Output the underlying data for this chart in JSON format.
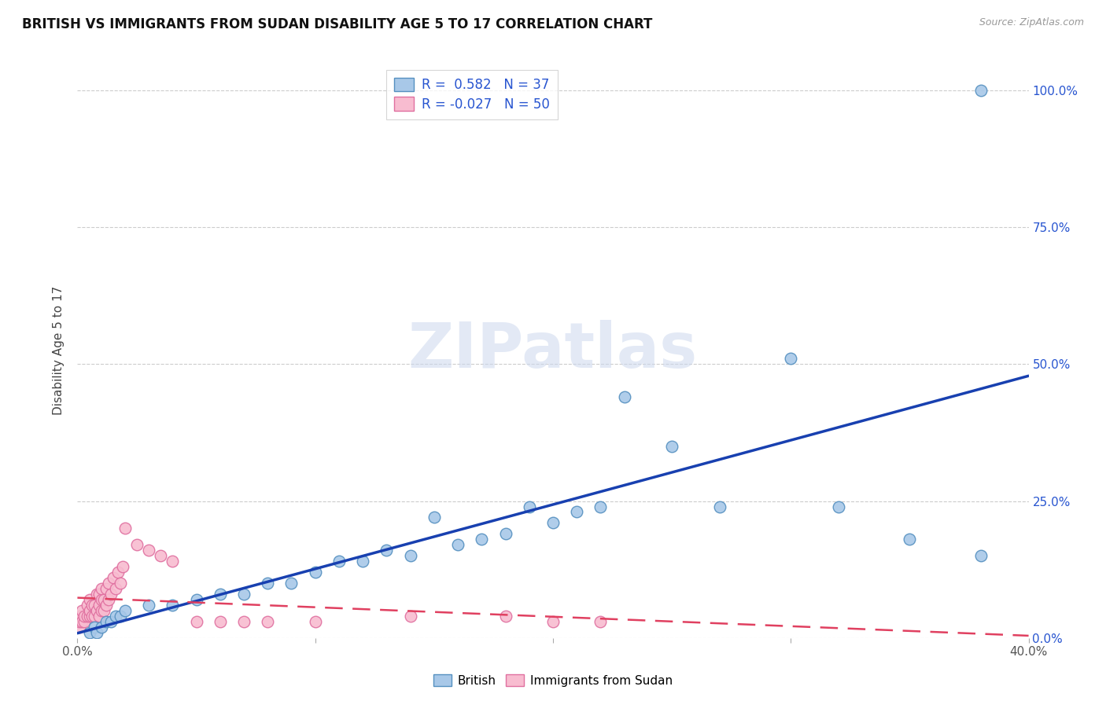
{
  "title": "BRITISH VS IMMIGRANTS FROM SUDAN DISABILITY AGE 5 TO 17 CORRELATION CHART",
  "source": "Source: ZipAtlas.com",
  "ylabel": "Disability Age 5 to 17",
  "x_min": 0.0,
  "x_max": 0.4,
  "y_min": 0.0,
  "y_max": 1.05,
  "x_ticks": [
    0.0,
    0.1,
    0.2,
    0.3,
    0.4
  ],
  "x_tick_labels": [
    "0.0%",
    "",
    "",
    "",
    "40.0%"
  ],
  "y_ticks": [
    0.0,
    0.25,
    0.5,
    0.75,
    1.0
  ],
  "right_y_tick_labels": [
    "0.0%",
    "25.0%",
    "50.0%",
    "75.0%",
    "100.0%"
  ],
  "british_color": "#a8c8e8",
  "british_edge_color": "#5590c0",
  "sudan_color": "#f8bcd0",
  "sudan_edge_color": "#e070a0",
  "trend_british_color": "#1840b0",
  "trend_sudan_color": "#e04060",
  "R_british": 0.582,
  "N_british": 37,
  "R_sudan": -0.027,
  "N_sudan": 50,
  "legend_text_color": "#2855d0",
  "watermark": "ZIPatlas",
  "british_x": [
    0.005,
    0.007,
    0.008,
    0.01,
    0.012,
    0.014,
    0.016,
    0.018,
    0.02,
    0.03,
    0.04,
    0.05,
    0.06,
    0.07,
    0.08,
    0.09,
    0.1,
    0.11,
    0.12,
    0.13,
    0.14,
    0.15,
    0.16,
    0.17,
    0.18,
    0.19,
    0.2,
    0.21,
    0.22,
    0.23,
    0.25,
    0.27,
    0.3,
    0.32,
    0.35,
    0.38,
    0.38
  ],
  "british_y": [
    0.01,
    0.02,
    0.01,
    0.02,
    0.03,
    0.03,
    0.04,
    0.04,
    0.05,
    0.06,
    0.06,
    0.07,
    0.08,
    0.08,
    0.1,
    0.1,
    0.12,
    0.14,
    0.14,
    0.16,
    0.15,
    0.22,
    0.17,
    0.18,
    0.19,
    0.24,
    0.21,
    0.23,
    0.24,
    0.44,
    0.35,
    0.24,
    0.51,
    0.24,
    0.18,
    0.15,
    1.0
  ],
  "sudan_x": [
    0.001,
    0.001,
    0.001,
    0.002,
    0.002,
    0.003,
    0.003,
    0.004,
    0.004,
    0.005,
    0.005,
    0.005,
    0.006,
    0.006,
    0.007,
    0.007,
    0.008,
    0.008,
    0.009,
    0.009,
    0.009,
    0.01,
    0.01,
    0.01,
    0.011,
    0.011,
    0.012,
    0.012,
    0.013,
    0.013,
    0.014,
    0.015,
    0.016,
    0.017,
    0.018,
    0.019,
    0.02,
    0.025,
    0.03,
    0.035,
    0.04,
    0.05,
    0.06,
    0.07,
    0.08,
    0.1,
    0.14,
    0.18,
    0.2,
    0.22
  ],
  "sudan_y": [
    0.02,
    0.03,
    0.04,
    0.03,
    0.05,
    0.03,
    0.04,
    0.04,
    0.06,
    0.04,
    0.05,
    0.07,
    0.04,
    0.06,
    0.04,
    0.06,
    0.05,
    0.08,
    0.04,
    0.06,
    0.08,
    0.05,
    0.07,
    0.09,
    0.05,
    0.07,
    0.06,
    0.09,
    0.07,
    0.1,
    0.08,
    0.11,
    0.09,
    0.12,
    0.1,
    0.13,
    0.2,
    0.17,
    0.16,
    0.15,
    0.14,
    0.03,
    0.03,
    0.03,
    0.03,
    0.03,
    0.04,
    0.04,
    0.03,
    0.03
  ]
}
